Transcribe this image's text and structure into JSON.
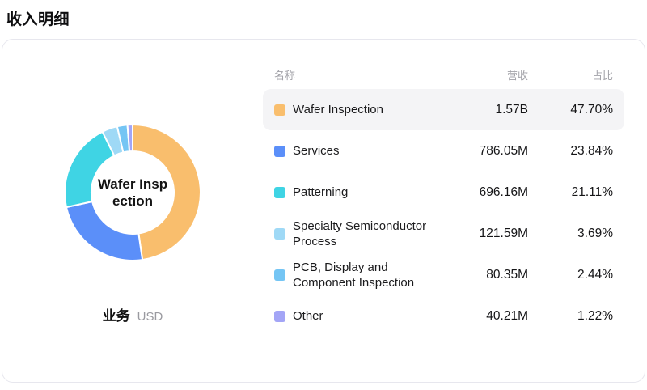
{
  "page_title": "收入明细",
  "table": {
    "headers": {
      "name": "名称",
      "revenue": "营收",
      "share": "占比"
    }
  },
  "chart_data": {
    "type": "pie",
    "title": "收入明细",
    "dimension_label": "业务",
    "unit": "USD",
    "center_label": "Wafer Inspection",
    "center_label_lines": [
      "Wafer Insp",
      "ection"
    ],
    "legend_position": "right-table",
    "donut": {
      "inner_radius_ratio": 0.6,
      "start_angle_deg": 0,
      "direction": "clockwise"
    },
    "highlight_bg": "#f4f4f6",
    "segments": [
      {
        "name": "Wafer Inspection",
        "revenue": "1.57B",
        "share": "47.70%",
        "value": 47.7,
        "color": "#F9BE6D",
        "highlighted": true
      },
      {
        "name": "Services",
        "revenue": "786.05M",
        "share": "23.84%",
        "value": 23.84,
        "color": "#5B8FF9",
        "highlighted": false
      },
      {
        "name": "Patterning",
        "revenue": "696.16M",
        "share": "21.11%",
        "value": 21.11,
        "color": "#3FD4E4",
        "highlighted": false
      },
      {
        "name": "Specialty Semiconductor Process",
        "revenue": "121.59M",
        "share": "3.69%",
        "value": 3.69,
        "color": "#9FD9F6",
        "highlighted": false
      },
      {
        "name": "PCB, Display and Component Inspection",
        "revenue": "80.35M",
        "share": "2.44%",
        "value": 2.44,
        "color": "#74C5F4",
        "highlighted": false
      },
      {
        "name": "Other",
        "revenue": "40.21M",
        "share": "1.22%",
        "value": 1.22,
        "color": "#A3A5F6",
        "highlighted": false
      }
    ]
  }
}
